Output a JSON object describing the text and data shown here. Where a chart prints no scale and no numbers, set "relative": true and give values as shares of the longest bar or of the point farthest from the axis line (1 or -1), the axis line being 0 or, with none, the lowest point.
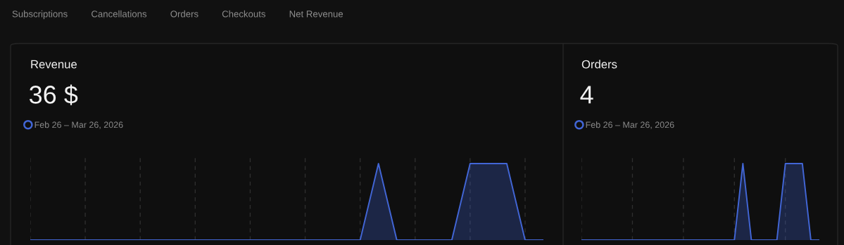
{
  "chart_data": [
    {
      "type": "area",
      "title": "Revenue",
      "subtitle": "36 $",
      "annotations": [
        "Subscriptions",
        "Cancellations",
        "Orders",
        "Checkouts",
        "Net Revenue"
      ],
      "categories": [
        null,
        null,
        null,
        null,
        null,
        null,
        null,
        null,
        null,
        null,
        null,
        null,
        null,
        null,
        null,
        null,
        null,
        null,
        null,
        null,
        null,
        null,
        null,
        null,
        null,
        null,
        null,
        null,
        null
      ],
      "series": [
        {
          "name": "Feb 26 – Mar 26, 2026",
          "color": "#4266d6",
          "values": [
            0,
            0,
            0,
            0,
            0,
            0,
            0,
            0,
            0,
            0,
            0,
            0,
            0,
            0,
            0,
            0,
            0,
            0,
            0,
            1,
            0,
            0,
            0,
            0,
            1,
            1,
            1,
            0,
            0
          ]
        }
      ],
      "relative": true,
      "grid": "x",
      "legend": "top left"
    },
    {
      "type": "area",
      "title": "Orders",
      "subtitle": "4",
      "categories": [
        null,
        null,
        null,
        null,
        null,
        null,
        null,
        null,
        null,
        null,
        null,
        null,
        null,
        null,
        null,
        null,
        null,
        null,
        null,
        null,
        null,
        null,
        null,
        null,
        null,
        null,
        null,
        null,
        null
      ],
      "series": [
        {
          "name": "Feb 26 – Mar 26, 2026",
          "color": "#4266d6",
          "values": [
            0,
            0,
            0,
            0,
            0,
            0,
            0,
            0,
            0,
            0,
            0,
            0,
            0,
            0,
            0,
            0,
            0,
            0,
            0,
            1,
            0,
            0,
            0,
            0,
            1,
            1,
            1,
            0,
            0
          ]
        }
      ],
      "relative": true,
      "grid": "x",
      "legend": "top left"
    }
  ]
}
